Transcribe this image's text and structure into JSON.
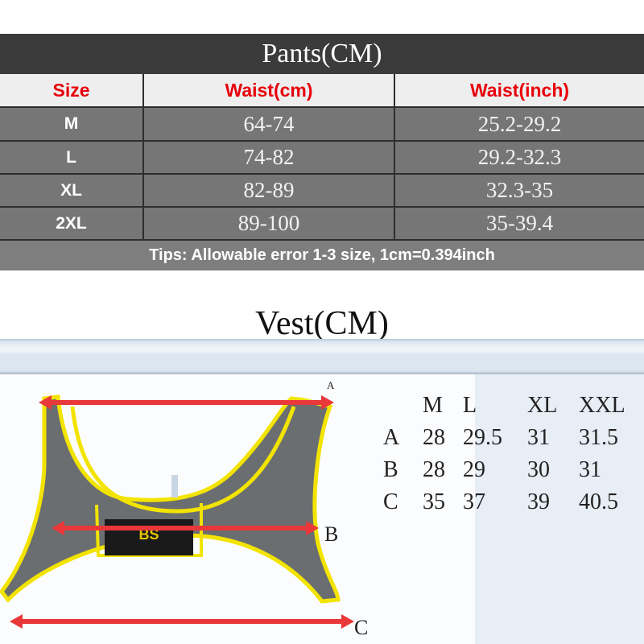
{
  "pants": {
    "title": "Pants(CM)",
    "headers": [
      "Size",
      "Waist(cm)",
      "Waist(inch)"
    ],
    "rows": [
      {
        "size": "M",
        "cm": "64-74",
        "inch": "25.2-29.2"
      },
      {
        "size": "L",
        "cm": "74-82",
        "inch": "29.2-32.3"
      },
      {
        "size": "XL",
        "cm": "82-89",
        "inch": "32.3-35"
      },
      {
        "size": "2XL",
        "cm": "89-100",
        "inch": "35-39.4"
      }
    ],
    "tips": "Tips: Allowable error 1-3 size, 1cm=0.394inch"
  },
  "vest": {
    "title": "Vest(CM)",
    "markers": {
      "a": "A",
      "b": "B",
      "c": "C"
    },
    "headers": [
      "M",
      "L",
      "XL",
      "XXL"
    ],
    "rows": [
      {
        "label": "A",
        "values": [
          "28",
          "29.5",
          "31",
          "31.5"
        ]
      },
      {
        "label": "B",
        "values": [
          "28",
          "29",
          "30",
          "31"
        ]
      },
      {
        "label": "C",
        "values": [
          "35",
          "37",
          "39",
          "40.5"
        ]
      }
    ],
    "logo": "BS"
  },
  "colors": {
    "header_red": "#e8000b",
    "trim_yellow": "#f2e400",
    "arrow_red": "#e8383a",
    "fabric_gray": "#6b6e70"
  }
}
